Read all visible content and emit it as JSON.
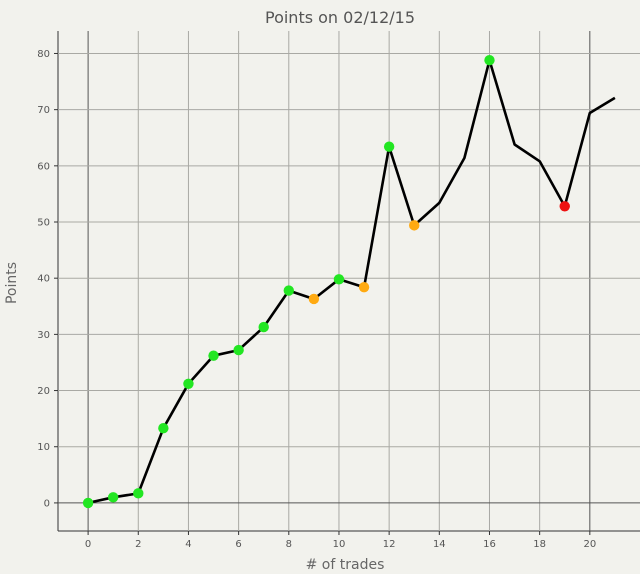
{
  "chart_data": {
    "type": "line",
    "title": "Points on 02/12/15",
    "xlabel": "# of trades",
    "ylabel": "Points",
    "xlim": [
      -1.2,
      22
    ],
    "ylim": [
      -5,
      84
    ],
    "x_ticks": [
      0,
      2,
      4,
      6,
      8,
      10,
      12,
      14,
      16,
      18,
      20
    ],
    "y_ticks": [
      0,
      10,
      20,
      30,
      40,
      50,
      60,
      70,
      80
    ],
    "grid": true,
    "line_color": "#000000",
    "colors": {
      "green": "#22e622",
      "orange": "#ffaa11",
      "red": "#ee1111"
    },
    "points": [
      {
        "x": 0,
        "y": 0,
        "marker": "green"
      },
      {
        "x": 1,
        "y": 1,
        "marker": "green"
      },
      {
        "x": 2,
        "y": 1.7,
        "marker": "green"
      },
      {
        "x": 3,
        "y": 13.3,
        "marker": "green"
      },
      {
        "x": 4,
        "y": 21.2,
        "marker": "green"
      },
      {
        "x": 5,
        "y": 26.2,
        "marker": "green"
      },
      {
        "x": 6,
        "y": 27.2,
        "marker": "green"
      },
      {
        "x": 7,
        "y": 31.3,
        "marker": "green"
      },
      {
        "x": 8,
        "y": 37.8,
        "marker": "green"
      },
      {
        "x": 9,
        "y": 36.3,
        "marker": "orange"
      },
      {
        "x": 10,
        "y": 39.8,
        "marker": "green"
      },
      {
        "x": 11,
        "y": 38.4,
        "marker": "orange"
      },
      {
        "x": 12,
        "y": 63.4,
        "marker": "green"
      },
      {
        "x": 13,
        "y": 49.4,
        "marker": "orange"
      },
      {
        "x": 14,
        "y": 53.4,
        "marker": ""
      },
      {
        "x": 15,
        "y": 61.4,
        "marker": ""
      },
      {
        "x": 16,
        "y": 78.8,
        "marker": "green"
      },
      {
        "x": 17,
        "y": 63.8,
        "marker": ""
      },
      {
        "x": 18,
        "y": 60.8,
        "marker": ""
      },
      {
        "x": 19,
        "y": 52.8,
        "marker": "red"
      },
      {
        "x": 20,
        "y": 69.4,
        "marker": ""
      },
      {
        "x": 21,
        "y": 72.1,
        "marker": ""
      }
    ]
  }
}
